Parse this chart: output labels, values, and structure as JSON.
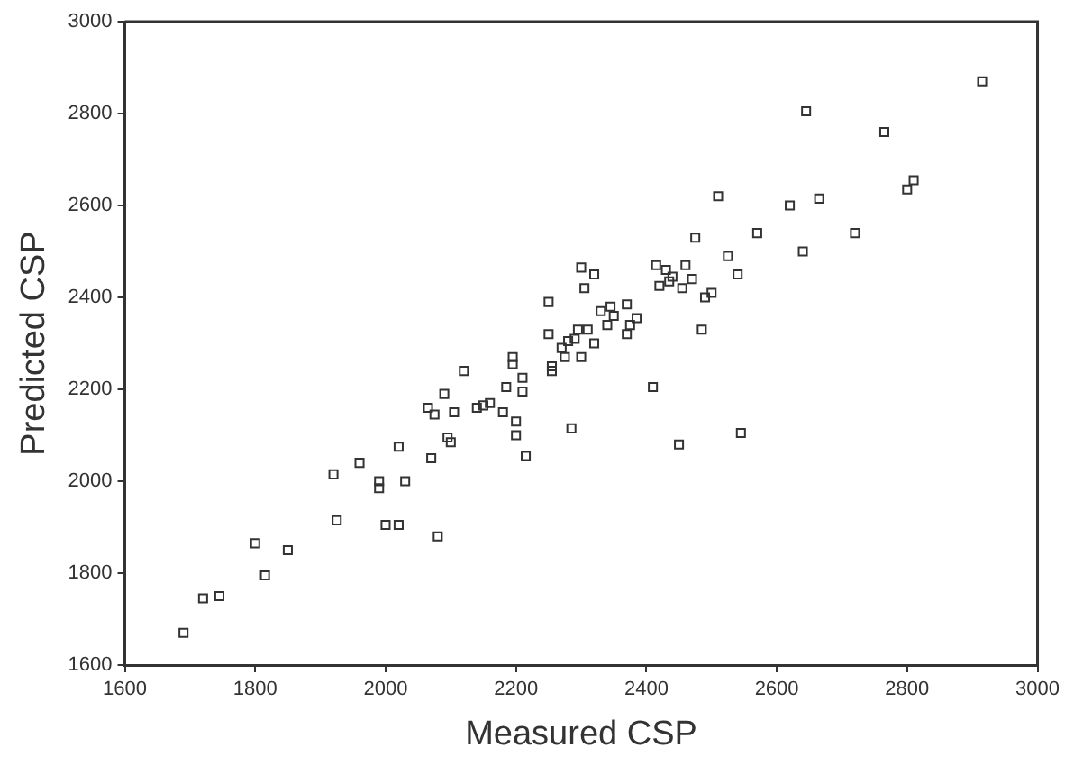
{
  "chart_data": {
    "type": "scatter",
    "xlabel": "Measured CSP",
    "ylabel": "Predicted CSP",
    "xlim": [
      1600,
      3000
    ],
    "ylim": [
      1600,
      3000
    ],
    "xticks": [
      1600,
      1800,
      2000,
      2200,
      2400,
      2600,
      2800,
      3000
    ],
    "yticks": [
      1600,
      1800,
      2000,
      2200,
      2400,
      2600,
      2800,
      3000
    ],
    "grid": false,
    "legend": false,
    "marker": "square",
    "series": [
      {
        "color": "#333333",
        "x": [
          1690,
          1720,
          1745,
          1800,
          1815,
          1850,
          1920,
          1925,
          1960,
          1990,
          1990,
          2000,
          2020,
          2020,
          2030,
          2065,
          2070,
          2075,
          2080,
          2090,
          2095,
          2100,
          2105,
          2120,
          2140,
          2150,
          2160,
          2180,
          2185,
          2195,
          2195,
          2200,
          2200,
          2210,
          2210,
          2215,
          2250,
          2250,
          2255,
          2255,
          2270,
          2275,
          2280,
          2285,
          2290,
          2295,
          2300,
          2300,
          2305,
          2310,
          2320,
          2320,
          2330,
          2340,
          2345,
          2350,
          2370,
          2370,
          2375,
          2385,
          2410,
          2415,
          2420,
          2430,
          2435,
          2440,
          2450,
          2455,
          2460,
          2470,
          2475,
          2485,
          2490,
          2500,
          2510,
          2525,
          2540,
          2545,
          2570,
          2620,
          2640,
          2645,
          2665,
          2720,
          2765,
          2800,
          2810,
          2915
        ],
        "values": [
          1670,
          1745,
          1750,
          1865,
          1795,
          1850,
          2015,
          1915,
          2040,
          2000,
          1985,
          1905,
          1905,
          2075,
          2000,
          2160,
          2050,
          2145,
          1880,
          2190,
          2095,
          2085,
          2150,
          2240,
          2160,
          2165,
          2170,
          2150,
          2205,
          2270,
          2255,
          2130,
          2100,
          2195,
          2225,
          2055,
          2390,
          2320,
          2250,
          2240,
          2290,
          2270,
          2305,
          2115,
          2310,
          2330,
          2465,
          2270,
          2420,
          2330,
          2300,
          2450,
          2370,
          2340,
          2380,
          2360,
          2320,
          2385,
          2340,
          2355,
          2205,
          2470,
          2425,
          2460,
          2435,
          2445,
          2080,
          2420,
          2470,
          2440,
          2530,
          2330,
          2400,
          2410,
          2620,
          2490,
          2450,
          2105,
          2540,
          2600,
          2500,
          2805,
          2615,
          2540,
          2760,
          2635,
          2655,
          2870
        ]
      }
    ]
  }
}
